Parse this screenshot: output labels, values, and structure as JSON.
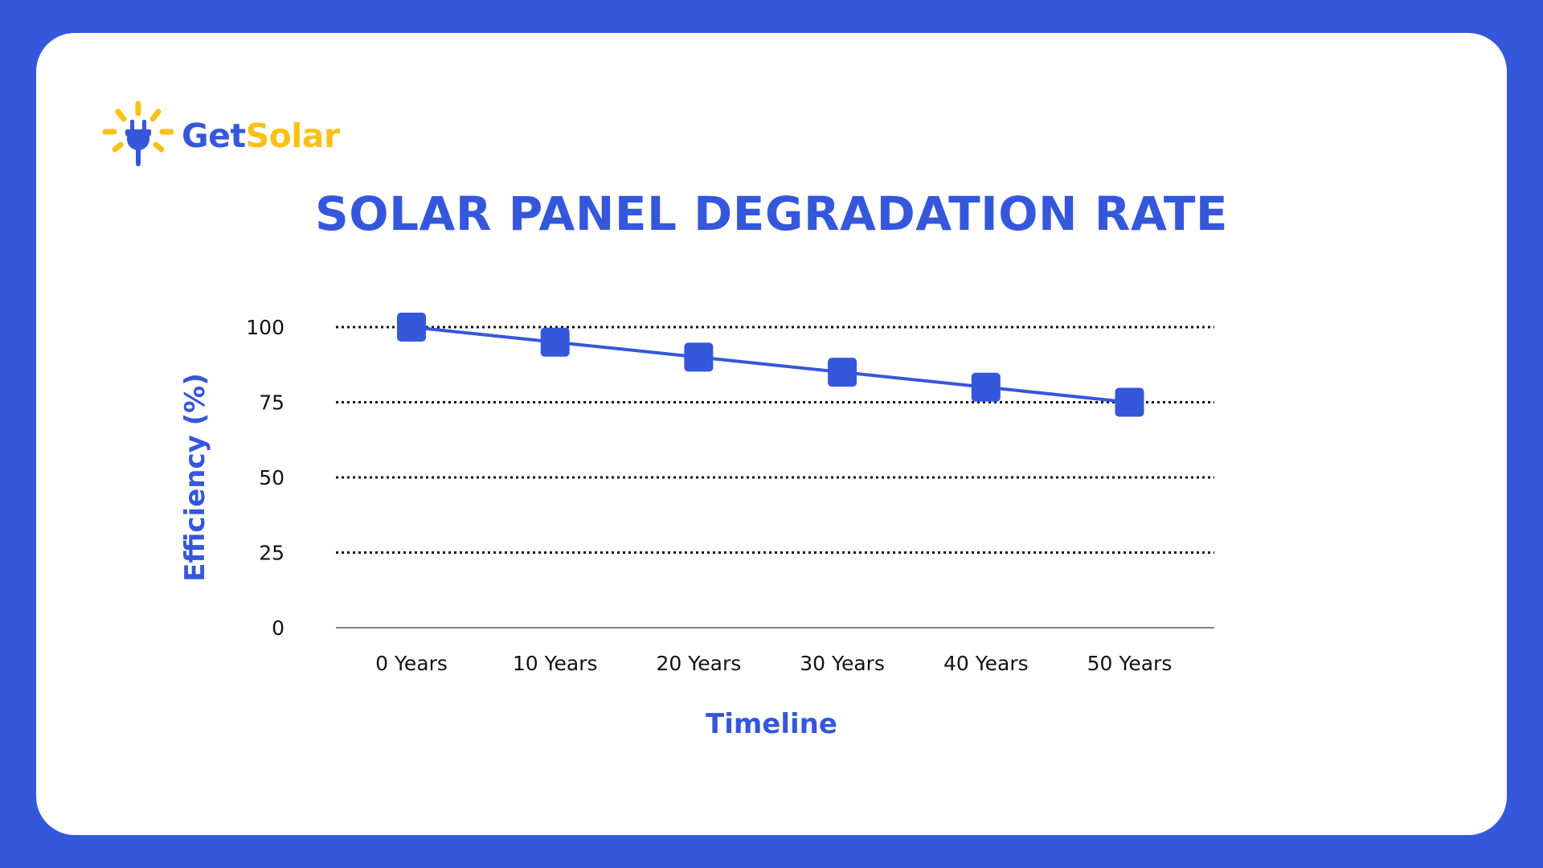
{
  "brand": {
    "name_part1": "Get",
    "name_part2": "Solar",
    "primary_color": "#3557db",
    "accent_color": "#f9c116",
    "logo_icon": "sun-plug-icon"
  },
  "chart_data": {
    "type": "line",
    "title": "SOLAR PANEL DEGRADATION RATE",
    "xlabel": "Timeline",
    "ylabel": "Efficiency (%)",
    "categories": [
      "0 Years",
      "10 Years",
      "20 Years",
      "30 Years",
      "40 Years",
      "50 Years"
    ],
    "series": [
      {
        "name": "Efficiency",
        "values": [
          100,
          95,
          90,
          85,
          80,
          75
        ],
        "color": "#3557db",
        "marker": "square"
      }
    ],
    "yticks": [
      0,
      25,
      50,
      75,
      100
    ],
    "ylim": [
      0,
      100
    ],
    "grid": "dotted horizontal",
    "legend": "none"
  }
}
